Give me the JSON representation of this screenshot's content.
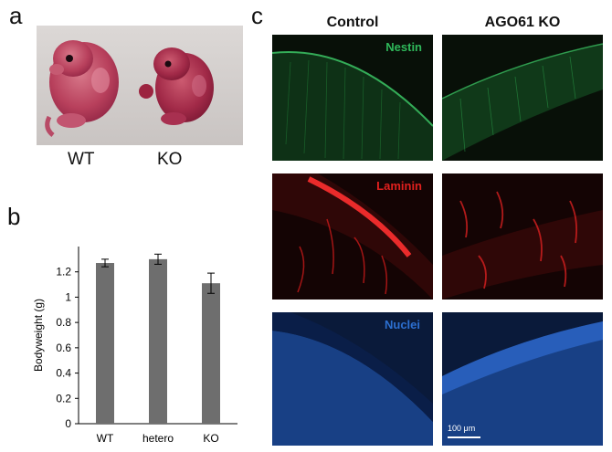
{
  "panels": {
    "a": {
      "letter": "a",
      "labels": [
        "WT",
        "KO"
      ]
    },
    "b": {
      "letter": "b"
    },
    "c": {
      "letter": "c",
      "columns": [
        "Control",
        "AGO61 KO"
      ],
      "rows": [
        {
          "stain": "Nestin",
          "color": "#2fb85a"
        },
        {
          "stain": "Laminin",
          "color": "#e0201e"
        },
        {
          "stain": "Nuclei",
          "color": "#2c6fd0"
        }
      ],
      "scale_bar_label": "100 μm"
    }
  },
  "chart_data": {
    "type": "bar",
    "categories": [
      "WT",
      "hetero",
      "KO"
    ],
    "values": [
      1.27,
      1.3,
      1.11
    ],
    "errors": [
      0.03,
      0.04,
      0.08
    ],
    "xlabel": "",
    "ylabel": "Bodyweight (g)",
    "ylim": [
      0,
      1.4
    ],
    "yticks": [
      0,
      0.2,
      0.4,
      0.6,
      0.8,
      1,
      1.2
    ],
    "bar_color": "#6e6e6e",
    "grid": false
  }
}
